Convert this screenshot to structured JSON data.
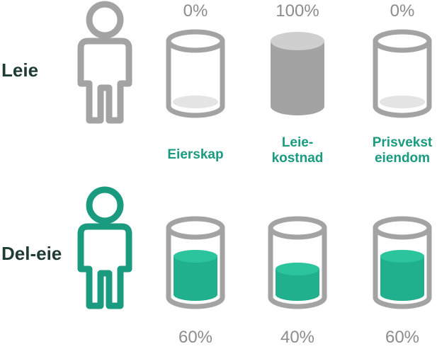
{
  "colors": {
    "gray": "#a3a3a3",
    "gray_light": "#e4e4e4",
    "gray_top": "#cfcfcf",
    "teal": "#1a9b7f",
    "teal_fill": "#21b08e",
    "teal_top": "#2cc49c",
    "dark": "#1f3b34"
  },
  "rows": [
    {
      "label": "Leie",
      "person_icon": "person-outline-gray",
      "values": [
        "0%",
        "100%",
        "0%"
      ],
      "fill_levels": [
        0,
        1,
        0
      ]
    },
    {
      "label": "Del-eie",
      "person_icon": "person-outline-teal",
      "values": [
        "60%",
        "40%",
        "60%"
      ],
      "fill_levels": [
        0.6,
        0.4,
        0.6
      ]
    }
  ],
  "categories": [
    "Eierskap",
    "Leie-\nkostnad",
    "Prisvekst\neiendom"
  ]
}
